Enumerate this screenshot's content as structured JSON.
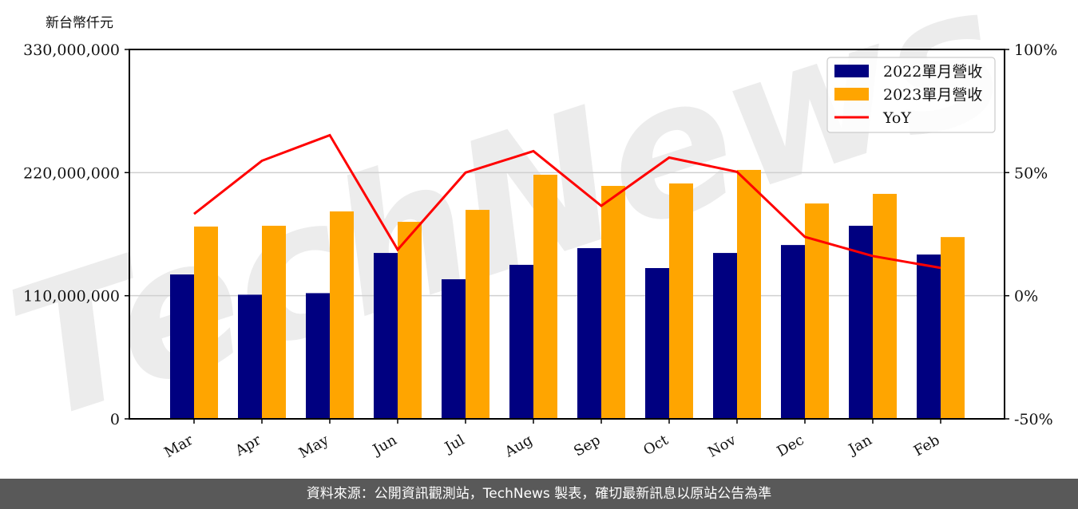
{
  "chart_data": {
    "type": "bar+line",
    "title": "",
    "ylabel": "新台幣仟元",
    "xlabel": "",
    "categories": [
      "Mar",
      "Apr",
      "May",
      "Jun",
      "Jul",
      "Aug",
      "Sep",
      "Oct",
      "Nov",
      "Dec",
      "Jan",
      "Feb"
    ],
    "series": [
      {
        "name": "2022單月營收",
        "type": "bar",
        "color": "#000080",
        "axis": "left",
        "values": [
          129000000,
          110900000,
          112300000,
          148200000,
          124700000,
          137600000,
          152500000,
          134700000,
          148200000,
          155300000,
          172500000,
          146800000
        ]
      },
      {
        "name": "2023單月營收",
        "type": "bar",
        "color": "#FFA500",
        "axis": "left",
        "values": [
          171800000,
          172500000,
          185300000,
          176000000,
          186700000,
          218100000,
          208100000,
          210300000,
          222400000,
          192400000,
          201000000,
          162400000
        ]
      },
      {
        "name": "YoY",
        "type": "line",
        "color": "#FF0000",
        "axis": "right",
        "unit": "%",
        "values": [
          33.2,
          54.8,
          65.2,
          18.7,
          50.0,
          58.7,
          36.5,
          56.1,
          50.3,
          23.9,
          16.1,
          11.3
        ]
      }
    ],
    "left_axis": {
      "ylim": [
        0,
        330000000
      ],
      "ticks": [
        0,
        110000000,
        220000000,
        330000000
      ],
      "tick_labels": [
        "0",
        "110,000,000",
        "220,000,000",
        "330,000,000"
      ]
    },
    "right_axis": {
      "ylim": [
        -50,
        100
      ],
      "ticks": [
        -50,
        0,
        50,
        100
      ],
      "tick_labels": [
        "-50%",
        "0%",
        "50%",
        "100%"
      ]
    },
    "grid": "horizontal",
    "legend_position": "upper right",
    "watermark": "TechNews"
  },
  "header": {
    "unit_label": "新台幣仟元"
  },
  "footer": {
    "source_text": "資料來源：公開資訊觀測站，TechNews 製表，確切最新訊息以原站公告為準"
  }
}
